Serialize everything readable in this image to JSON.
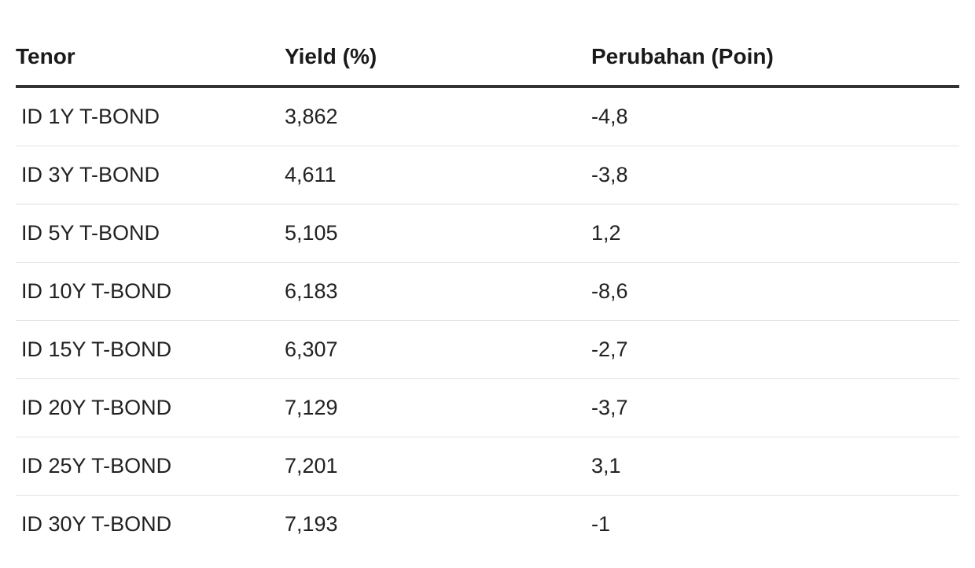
{
  "table": {
    "headers": {
      "tenor": "Tenor",
      "yield": "Yield (%)",
      "change": "Perubahan (Poin)"
    },
    "rows": [
      {
        "tenor": "ID 1Y T-BOND",
        "yield": "3,862",
        "change": "-4,8"
      },
      {
        "tenor": "ID 3Y T-BOND",
        "yield": "4,611",
        "change": "-3,8"
      },
      {
        "tenor": "ID 5Y T-BOND",
        "yield": "5,105",
        "change": "1,2"
      },
      {
        "tenor": "ID 10Y T-BOND",
        "yield": "6,183",
        "change": "-8,6"
      },
      {
        "tenor": "ID 15Y T-BOND",
        "yield": "6,307",
        "change": "-2,7"
      },
      {
        "tenor": "ID 20Y T-BOND",
        "yield": "7,129",
        "change": "-3,7"
      },
      {
        "tenor": "ID 25Y T-BOND",
        "yield": "7,201",
        "change": "3,1"
      },
      {
        "tenor": "ID 30Y T-BOND",
        "yield": "7,193",
        "change": "-1"
      }
    ]
  }
}
